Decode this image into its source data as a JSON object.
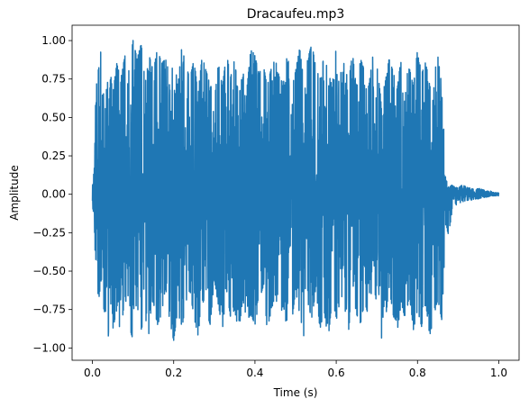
{
  "chart_data": {
    "type": "line",
    "title": "Dracaufeu.mp3",
    "xlabel": "Time (s)",
    "ylabel": "Amplitude",
    "xlim": [
      -0.05,
      1.05
    ],
    "ylim": [
      -1.08,
      1.1
    ],
    "x_ticks": [
      0.0,
      0.2,
      0.4,
      0.6,
      0.8,
      1.0
    ],
    "x_tick_labels": [
      "0.0",
      "0.2",
      "0.4",
      "0.6",
      "0.8",
      "1.0"
    ],
    "y_ticks": [
      -1.0,
      -0.75,
      -0.5,
      -0.25,
      0.0,
      0.25,
      0.5,
      0.75,
      1.0
    ],
    "y_tick_labels": [
      "−1.00",
      "−0.75",
      "−0.50",
      "−0.25",
      "0.00",
      "0.25",
      "0.50",
      "0.75",
      "1.00"
    ],
    "grid": false,
    "legend": "none",
    "series": [
      {
        "color": "#1f77b4",
        "x": [
          0.0,
          0.005,
          0.01,
          0.015,
          0.02,
          0.025,
          0.03,
          0.035,
          0.04,
          0.045,
          0.05,
          0.06,
          0.07,
          0.08,
          0.09,
          0.1,
          0.11,
          0.12,
          0.13,
          0.14,
          0.15,
          0.16,
          0.17,
          0.18,
          0.19,
          0.2,
          0.21,
          0.22,
          0.23,
          0.24,
          0.25,
          0.26,
          0.27,
          0.28,
          0.29,
          0.3,
          0.31,
          0.32,
          0.33,
          0.34,
          0.35,
          0.36,
          0.37,
          0.38,
          0.39,
          0.4,
          0.41,
          0.42,
          0.43,
          0.44,
          0.45,
          0.46,
          0.47,
          0.48,
          0.49,
          0.5,
          0.51,
          0.52,
          0.53,
          0.54,
          0.55,
          0.56,
          0.57,
          0.58,
          0.59,
          0.6,
          0.61,
          0.62,
          0.63,
          0.64,
          0.65,
          0.66,
          0.67,
          0.68,
          0.69,
          0.7,
          0.71,
          0.72,
          0.73,
          0.74,
          0.75,
          0.76,
          0.77,
          0.78,
          0.79,
          0.8,
          0.81,
          0.82,
          0.83,
          0.84,
          0.85,
          0.86,
          0.87,
          0.875,
          0.88,
          0.885,
          0.89,
          0.9,
          0.91,
          0.92,
          0.93,
          0.94,
          0.95,
          0.96,
          0.97,
          0.98,
          0.99,
          1.0
        ],
        "y_upper": [
          0.05,
          0.18,
          0.92,
          0.8,
          0.95,
          0.62,
          0.7,
          0.88,
          0.55,
          0.78,
          0.65,
          0.85,
          0.75,
          0.9,
          0.82,
          1.0,
          0.88,
          0.98,
          0.72,
          0.9,
          0.8,
          0.95,
          0.85,
          0.88,
          0.78,
          0.92,
          0.7,
          0.96,
          0.84,
          0.75,
          0.88,
          0.65,
          0.9,
          0.8,
          0.72,
          0.6,
          0.85,
          0.7,
          0.92,
          0.76,
          0.88,
          0.62,
          0.8,
          0.68,
          0.95,
          0.9,
          0.78,
          0.85,
          0.7,
          0.82,
          0.88,
          0.76,
          0.72,
          0.92,
          0.68,
          0.8,
          0.95,
          0.74,
          0.88,
          0.98,
          0.82,
          0.75,
          0.9,
          0.8,
          0.7,
          0.96,
          0.78,
          0.86,
          0.72,
          0.92,
          0.68,
          0.88,
          0.8,
          0.7,
          0.9,
          0.84,
          0.62,
          0.72,
          0.88,
          0.8,
          0.68,
          0.9,
          0.75,
          0.82,
          0.7,
          0.94,
          0.78,
          0.86,
          0.72,
          0.8,
          0.9,
          0.7,
          0.1,
          0.06,
          0.05,
          0.06,
          0.05,
          0.04,
          0.06,
          0.05,
          0.04,
          0.03,
          0.04,
          0.03,
          0.02,
          0.02,
          0.01,
          0.01
        ],
        "y_lower": [
          -0.05,
          -0.25,
          -0.62,
          -0.84,
          -0.5,
          -0.78,
          -0.9,
          -0.6,
          -0.98,
          -0.7,
          -0.88,
          -0.75,
          -0.92,
          -0.65,
          -0.85,
          -0.95,
          -0.72,
          -0.88,
          -0.8,
          -0.92,
          -0.7,
          -0.85,
          -0.78,
          -0.6,
          -0.82,
          -0.95,
          -0.75,
          -0.88,
          -0.7,
          -0.62,
          -0.8,
          -0.92,
          -0.68,
          -0.76,
          -0.85,
          -0.55,
          -0.72,
          -0.88,
          -0.62,
          -0.8,
          -0.75,
          -0.9,
          -0.68,
          -0.82,
          -0.78,
          -0.85,
          -0.7,
          -0.6,
          -0.88,
          -0.76,
          -0.65,
          -0.8,
          -0.72,
          -0.9,
          -0.85,
          -0.62,
          -0.78,
          -0.92,
          -0.7,
          -0.82,
          -0.6,
          -0.88,
          -0.75,
          -0.95,
          -0.68,
          -0.8,
          -0.85,
          -0.72,
          -0.9,
          -0.62,
          -0.78,
          -0.84,
          -0.7,
          -0.8,
          -0.55,
          -0.72,
          -0.95,
          -0.85,
          -0.6,
          -0.78,
          -0.9,
          -0.7,
          -0.82,
          -0.65,
          -0.88,
          -0.75,
          -0.86,
          -0.7,
          -0.92,
          -0.8,
          -0.68,
          -0.82,
          -0.18,
          -0.26,
          -0.2,
          -0.12,
          -0.08,
          -0.06,
          -0.05,
          -0.04,
          -0.04,
          -0.03,
          -0.03,
          -0.02,
          -0.02,
          -0.01,
          -0.01,
          -0.01
        ]
      }
    ]
  }
}
